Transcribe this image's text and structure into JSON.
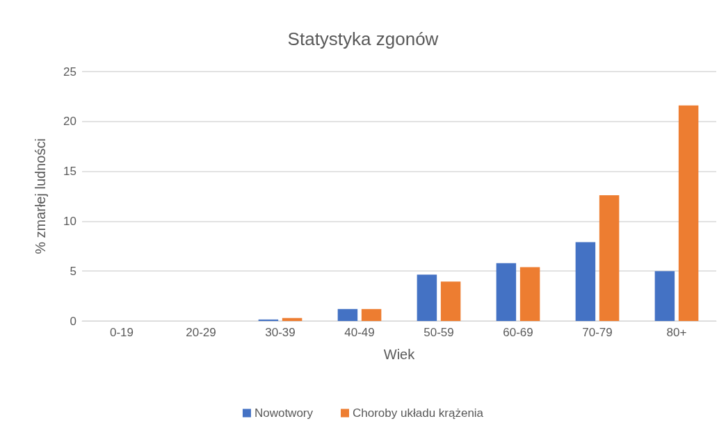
{
  "chart_data": {
    "type": "bar",
    "title": "Statystyka zgonów",
    "xlabel": "Wiek",
    "ylabel": "% zmarłej ludności",
    "categories": [
      "0-19",
      "20-29",
      "30-39",
      "40-49",
      "50-59",
      "60-69",
      "70-79",
      "80+"
    ],
    "series": [
      {
        "name": "Nowotwory",
        "color": "#4472c4",
        "values": [
          0,
          0,
          0.15,
          1.2,
          4.65,
          5.8,
          7.9,
          5.0
        ]
      },
      {
        "name": "Choroby układu krążenia",
        "color": "#ed7d31",
        "values": [
          0,
          0,
          0.3,
          1.2,
          3.95,
          5.4,
          12.6,
          21.6
        ]
      }
    ],
    "ylim": [
      0,
      25
    ],
    "yticks": [
      0,
      5,
      10,
      15,
      20,
      25
    ],
    "grid": "y",
    "legend": "bottom"
  }
}
